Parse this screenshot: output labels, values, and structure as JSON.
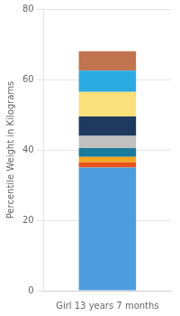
{
  "chart_data": {
    "type": "bar",
    "stacked": true,
    "categories": [
      "Girl 13 years 7 months"
    ],
    "series": [
      {
        "color": "#4d9de0",
        "values": [
          35.0
        ]
      },
      {
        "color": "#e8531a",
        "values": [
          1.5
        ]
      },
      {
        "color": "#f5a623",
        "values": [
          1.5
        ]
      },
      {
        "color": "#1a7a9a",
        "values": [
          2.5
        ]
      },
      {
        "color": "#c0c0c0",
        "values": [
          3.5
        ]
      },
      {
        "color": "#1f3a5f",
        "values": [
          5.5
        ]
      },
      {
        "color": "#f9e07a",
        "values": [
          7.0
        ]
      },
      {
        "color": "#29abe2",
        "values": [
          6.0
        ]
      },
      {
        "color": "#c1744f",
        "values": [
          5.5
        ]
      }
    ],
    "ylabel": "Percentile Weight in Kilograms",
    "ylim": [
      0,
      80
    ],
    "yticks": [
      0,
      20,
      40,
      60,
      80
    ],
    "grid": true
  }
}
